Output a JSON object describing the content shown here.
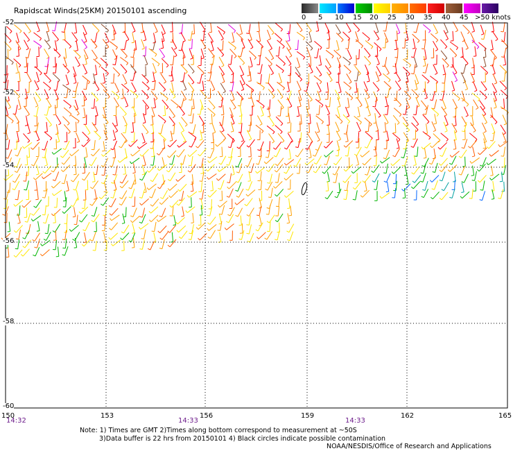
{
  "title": "Rapidscat Winds(25KM) 20150101 ascending",
  "legend": {
    "ticks": [
      "0",
      "5",
      "10",
      "15",
      "20",
      "25",
      "30",
      "35",
      "40",
      "45",
      ">50 knots"
    ],
    "colors": [
      "#5a5a5a",
      "#00c8ff",
      "#0064ff",
      "#00b400",
      "#ffe600",
      "#ffa000",
      "#ff5a00",
      "#ff0000",
      "#8b4a2a",
      "#e000e0",
      "#3a0a7a"
    ]
  },
  "axes": {
    "latitudes": [
      "-52",
      "-52",
      "-54",
      "-56",
      "-58",
      "-60"
    ],
    "longitudes": [
      "150",
      "153",
      "156",
      "159",
      "162",
      "165"
    ],
    "times": [
      "14:32",
      "14:33",
      "14:33"
    ]
  },
  "notes": {
    "line1": "Note: 1) Times are GMT 2)Times along bottom correspond to measurement at ~50S",
    "line2": "3)Data buffer is 22 hrs from 20150101 4) Black circles indicate possible contamination",
    "line3": "NOAA/NESDIS/Office of Research and Applications"
  }
}
